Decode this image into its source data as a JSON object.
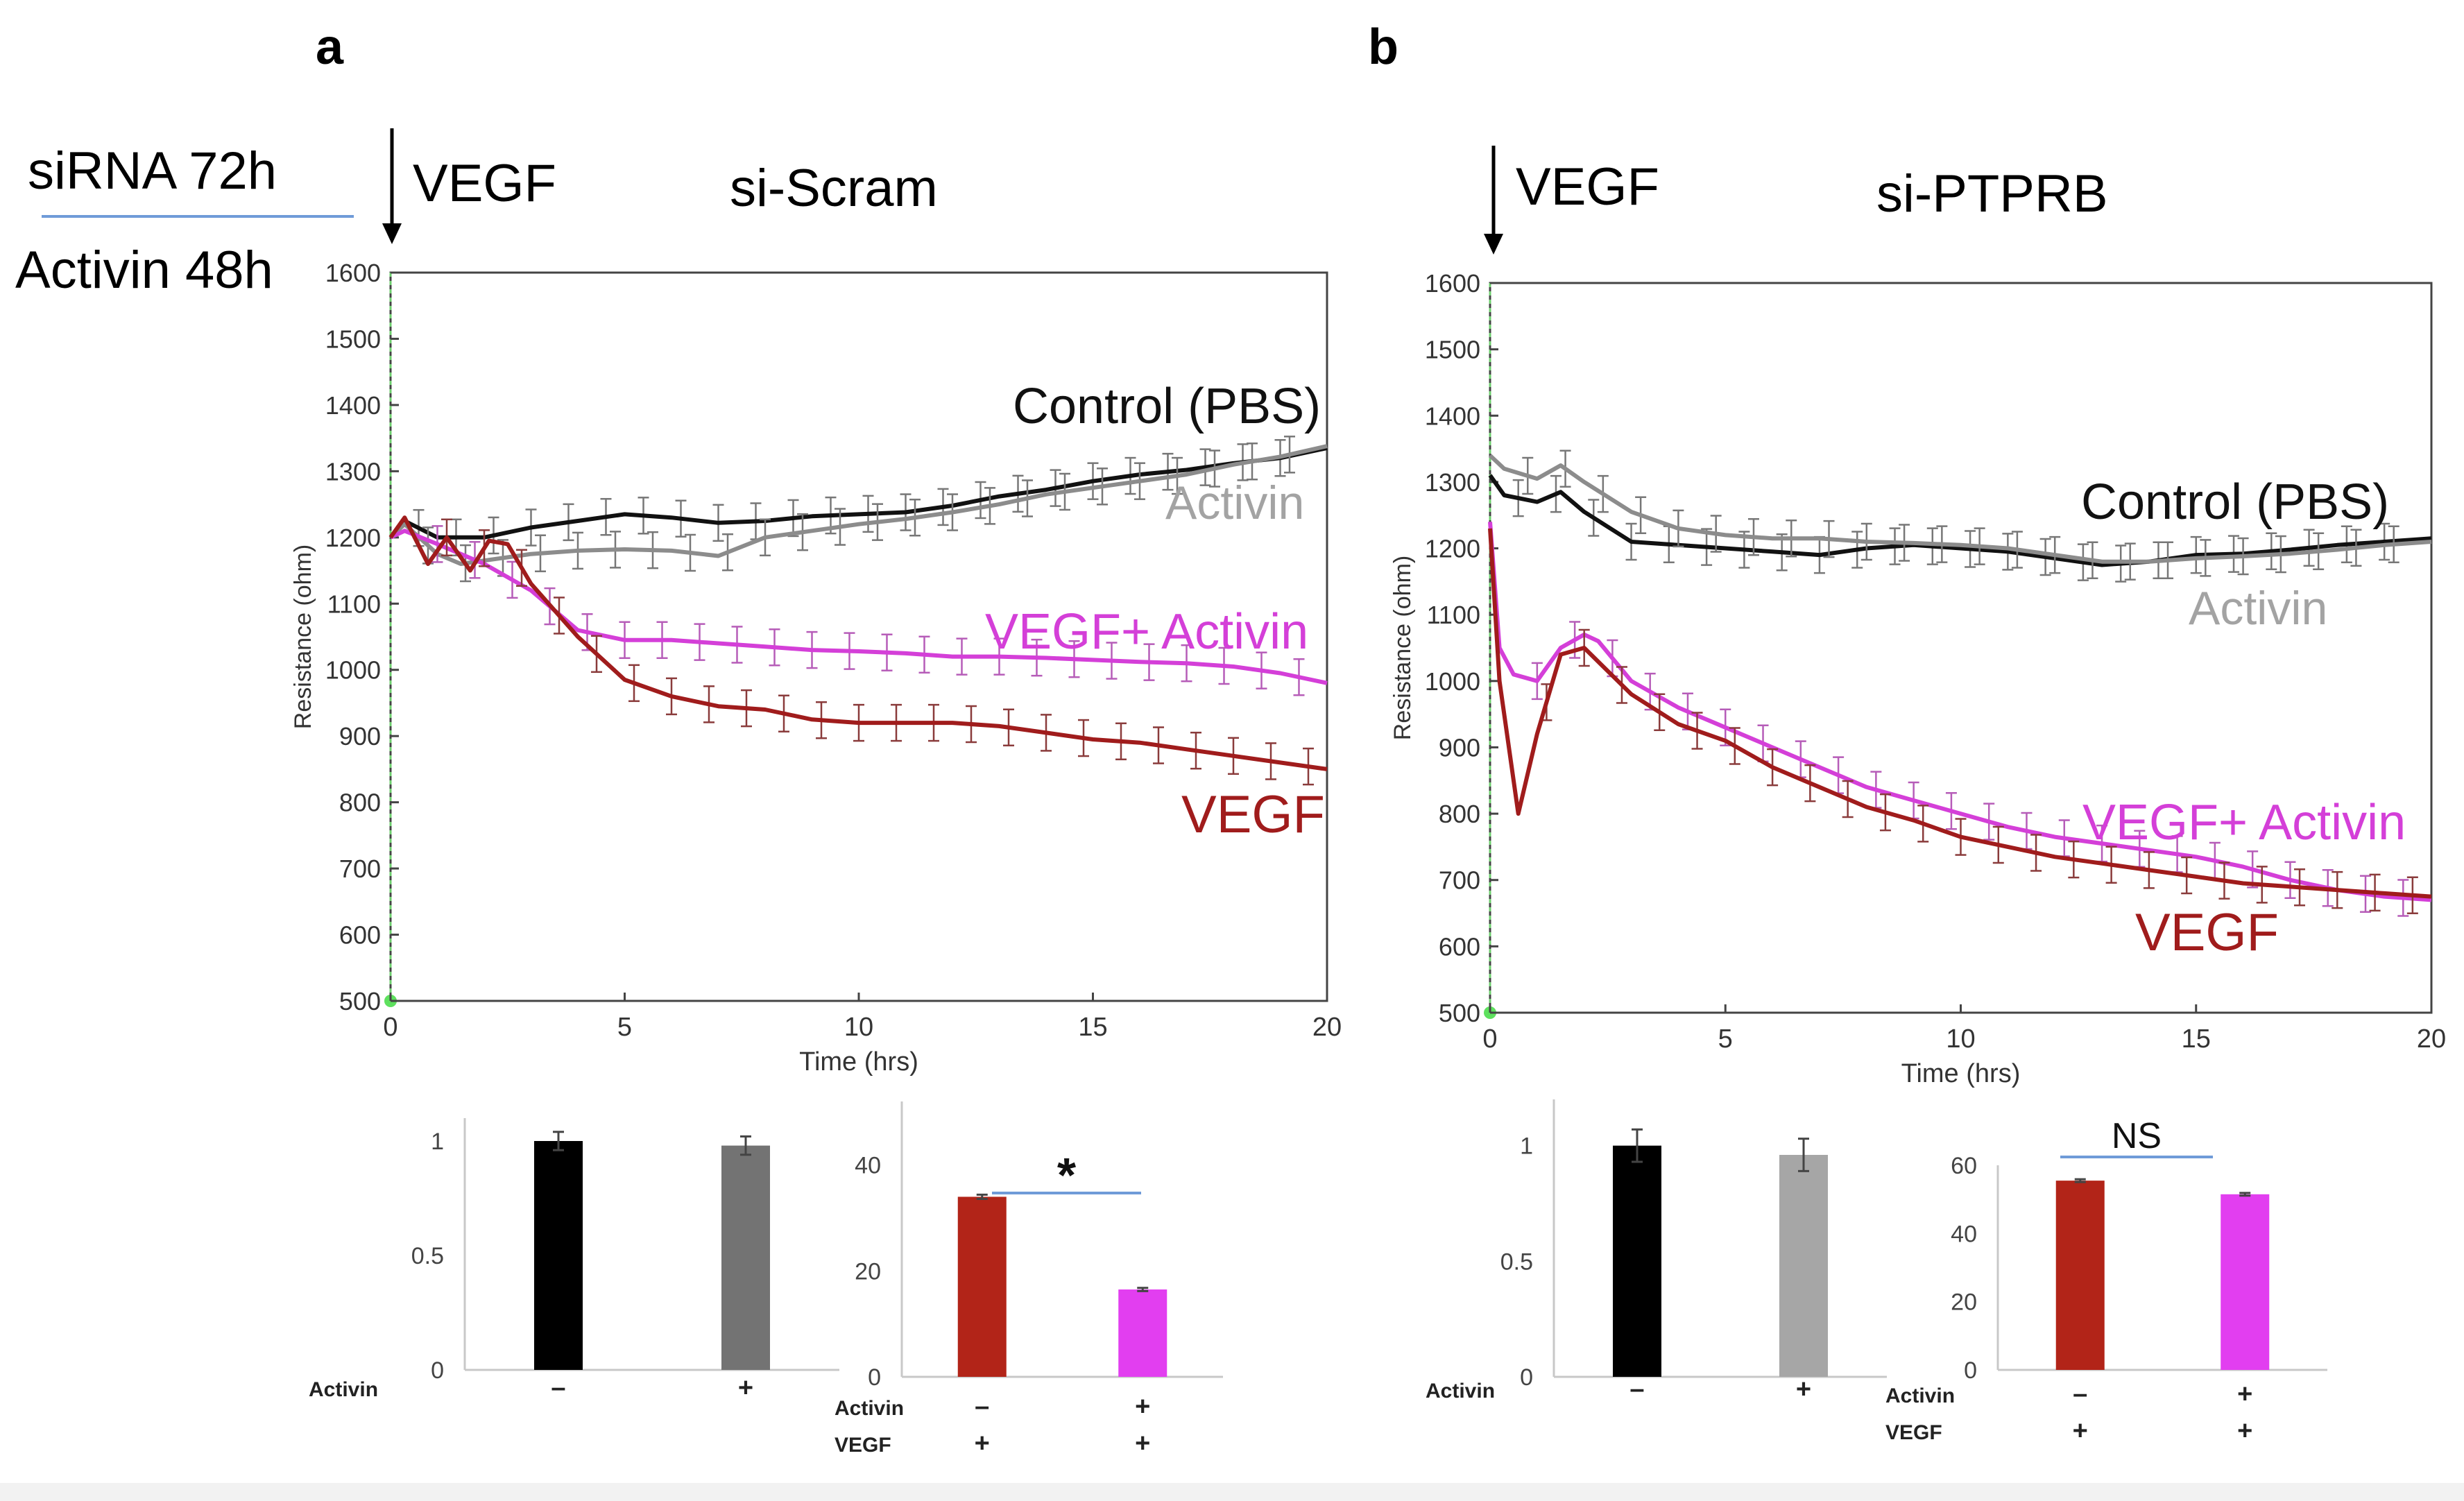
{
  "panels": {
    "a": {
      "letter": "a",
      "protocol_line1": "siRNA 72h",
      "protocol_line2": "Activin 48h",
      "arrow_label": "VEGF",
      "title": "si-Scram"
    },
    "b": {
      "letter": "b",
      "arrow_label": "VEGF",
      "title": "si-PTPRB"
    }
  },
  "colors": {
    "control": "#111111",
    "activin": "#8c8c8c",
    "vegf": "#a01c1c",
    "vegf_activin": "#d43fd8",
    "bar_black": "#000000",
    "bar_gray_a": "#737373",
    "bar_gray_b": "#a6a6a6",
    "bar_red": "#b22418",
    "bar_magenta": "#e23ef0",
    "sig_line": "#6f9bd8"
  },
  "chart_data": [
    {
      "id": "a-main",
      "type": "line",
      "panel": "a",
      "title": "si-Scram",
      "xlabel": "Time (hrs)",
      "ylabel": "Resistance (ohm)",
      "xlim": [
        0,
        20
      ],
      "ylim": [
        500,
        1600
      ],
      "xticks": [
        0,
        5,
        10,
        15,
        20
      ],
      "yticks": [
        500,
        600,
        700,
        800,
        900,
        1000,
        1100,
        1200,
        1300,
        1400,
        1500,
        1600
      ],
      "series": [
        {
          "name": "Control (PBS)",
          "key": "control",
          "label": "Control (PBS)",
          "x": [
            0,
            0.3,
            1,
            2,
            3,
            4,
            5,
            6,
            7,
            8,
            9,
            10,
            11,
            12,
            13,
            14,
            15,
            16,
            17,
            18,
            19,
            20
          ],
          "y": [
            1200,
            1225,
            1200,
            1200,
            1215,
            1225,
            1235,
            1230,
            1222,
            1225,
            1232,
            1235,
            1238,
            1248,
            1262,
            1272,
            1285,
            1295,
            1302,
            1312,
            1320,
            1335
          ]
        },
        {
          "name": "Activin",
          "key": "activin",
          "label": "Activin",
          "x": [
            0,
            0.3,
            1,
            1.5,
            2,
            3,
            4,
            5,
            6,
            7,
            8,
            9,
            10,
            11,
            12,
            13,
            14,
            15,
            16,
            17,
            18,
            19,
            20
          ],
          "y": [
            1200,
            1220,
            1175,
            1160,
            1165,
            1175,
            1180,
            1182,
            1180,
            1172,
            1200,
            1210,
            1220,
            1228,
            1238,
            1250,
            1265,
            1275,
            1285,
            1295,
            1310,
            1322,
            1338
          ]
        },
        {
          "name": "VEGF+ Activin",
          "key": "vegf_activin",
          "label": "VEGF+ Activin",
          "x": [
            0,
            0.3,
            1,
            2,
            3,
            4,
            5,
            6,
            7,
            8,
            9,
            10,
            11,
            12,
            13,
            14,
            15,
            16,
            17,
            18,
            19,
            20
          ],
          "y": [
            1200,
            1210,
            1190,
            1160,
            1120,
            1060,
            1045,
            1045,
            1040,
            1035,
            1030,
            1028,
            1025,
            1020,
            1020,
            1018,
            1015,
            1012,
            1010,
            1005,
            995,
            980
          ]
        },
        {
          "name": "VEGF",
          "key": "vegf",
          "label": "VEGF",
          "x": [
            0,
            0.3,
            0.8,
            1.2,
            1.7,
            2.1,
            2.5,
            3,
            4,
            5,
            6,
            7,
            8,
            9,
            10,
            11,
            12,
            13,
            14,
            15,
            16,
            17,
            18,
            19,
            20
          ],
          "y": [
            1200,
            1230,
            1160,
            1200,
            1150,
            1195,
            1190,
            1130,
            1050,
            985,
            960,
            945,
            940,
            925,
            920,
            920,
            920,
            915,
            905,
            895,
            890,
            880,
            870,
            860,
            850
          ]
        }
      ]
    },
    {
      "id": "b-main",
      "type": "line",
      "panel": "b",
      "title": "si-PTPRB",
      "xlabel": "Time (hrs)",
      "ylabel": "Resistance (ohm)",
      "xlim": [
        0,
        20
      ],
      "ylim": [
        500,
        1600
      ],
      "xticks": [
        0,
        5,
        10,
        15,
        20
      ],
      "yticks": [
        500,
        600,
        700,
        800,
        900,
        1000,
        1100,
        1200,
        1300,
        1400,
        1500,
        1600
      ],
      "series": [
        {
          "name": "Control (PBS)",
          "key": "control",
          "label": "Control (PBS)",
          "x": [
            0,
            0.3,
            1,
            1.5,
            2,
            3,
            4,
            5,
            6,
            7,
            8,
            9,
            10,
            11,
            12,
            13,
            14,
            15,
            16,
            17,
            18,
            19,
            20
          ],
          "y": [
            1310,
            1280,
            1270,
            1285,
            1255,
            1210,
            1205,
            1200,
            1195,
            1190,
            1200,
            1205,
            1200,
            1195,
            1185,
            1175,
            1180,
            1190,
            1192,
            1198,
            1205,
            1210,
            1215
          ]
        },
        {
          "name": "Activin",
          "key": "activin",
          "label": "Activin",
          "x": [
            0,
            0.3,
            1,
            1.5,
            2,
            3,
            4,
            5,
            6,
            7,
            8,
            9,
            10,
            11,
            12,
            13,
            14,
            15,
            16,
            17,
            18,
            19,
            20
          ],
          "y": [
            1340,
            1320,
            1305,
            1325,
            1300,
            1255,
            1230,
            1220,
            1215,
            1215,
            1210,
            1208,
            1205,
            1200,
            1190,
            1180,
            1180,
            1185,
            1188,
            1192,
            1198,
            1205,
            1210
          ]
        },
        {
          "name": "VEGF+ Activin",
          "key": "vegf_activin",
          "label": "VEGF+ Activin",
          "x": [
            0,
            0.2,
            0.5,
            1,
            1.5,
            2,
            2.3,
            3,
            4,
            5,
            6,
            7,
            8,
            9,
            10,
            11,
            12,
            13,
            14,
            15,
            16,
            17,
            18,
            19,
            20
          ],
          "y": [
            1240,
            1050,
            1010,
            1000,
            1050,
            1070,
            1060,
            1000,
            960,
            930,
            900,
            870,
            840,
            820,
            800,
            780,
            765,
            755,
            745,
            735,
            720,
            700,
            685,
            675,
            670
          ]
        },
        {
          "name": "VEGF",
          "key": "vegf",
          "label": "VEGF",
          "x": [
            0,
            0.2,
            0.6,
            1,
            1.5,
            2,
            3,
            4,
            5,
            6,
            7,
            8,
            9,
            10,
            11,
            12,
            13,
            14,
            15,
            16,
            17,
            18,
            19,
            20
          ],
          "y": [
            1230,
            1000,
            800,
            920,
            1040,
            1050,
            980,
            935,
            910,
            870,
            840,
            810,
            790,
            765,
            750,
            735,
            725,
            715,
            705,
            695,
            690,
            685,
            680,
            675
          ]
        }
      ]
    },
    {
      "id": "a-bar1",
      "type": "bar",
      "panel": "a",
      "ylim": [
        0,
        1.1
      ],
      "yticks": [
        "0",
        "0.5",
        "1"
      ],
      "ytick_values": [
        0,
        0.5,
        1
      ],
      "row_labels": [
        "Activin"
      ],
      "categories": [
        [
          "–"
        ],
        [
          "+"
        ]
      ],
      "values": [
        1.0,
        0.98
      ],
      "errors": [
        0.04,
        0.04
      ],
      "bar_colors": [
        "bar_black",
        "bar_gray_a"
      ]
    },
    {
      "id": "a-bar2",
      "type": "bar",
      "panel": "a",
      "ylim": [
        0,
        52
      ],
      "yticks": [
        "0",
        "20",
        "40"
      ],
      "ytick_values": [
        0,
        20,
        40
      ],
      "row_labels": [
        "Activin",
        "VEGF"
      ],
      "categories": [
        [
          "–",
          "+"
        ],
        [
          "+",
          "+"
        ]
      ],
      "values": [
        34,
        16.5
      ],
      "errors": [
        0.4,
        0.3
      ],
      "bar_colors": [
        "bar_red",
        "bar_magenta"
      ],
      "annotation": "*"
    },
    {
      "id": "b-bar1",
      "type": "bar",
      "panel": "b",
      "ylim": [
        0,
        1.2
      ],
      "yticks": [
        "0",
        "0.5",
        "1"
      ],
      "ytick_values": [
        0,
        0.5,
        1
      ],
      "row_labels": [
        "Activin"
      ],
      "categories": [
        [
          "–"
        ],
        [
          "+"
        ]
      ],
      "values": [
        1.0,
        0.96
      ],
      "errors": [
        0.07,
        0.07
      ],
      "bar_colors": [
        "bar_black",
        "bar_gray_b"
      ]
    },
    {
      "id": "b-bar2",
      "type": "bar",
      "panel": "b",
      "ylim": [
        0,
        60
      ],
      "yticks": [
        "0",
        "20",
        "40",
        "60"
      ],
      "ytick_values": [
        0,
        20,
        40,
        60
      ],
      "row_labels": [
        "Activin",
        "VEGF"
      ],
      "categories": [
        [
          "–",
          "+"
        ],
        [
          "+",
          "+"
        ]
      ],
      "values": [
        55.5,
        51.5
      ],
      "errors": [
        0.4,
        0.4
      ],
      "bar_colors": [
        "bar_red",
        "bar_magenta"
      ],
      "annotation": "NS"
    }
  ]
}
